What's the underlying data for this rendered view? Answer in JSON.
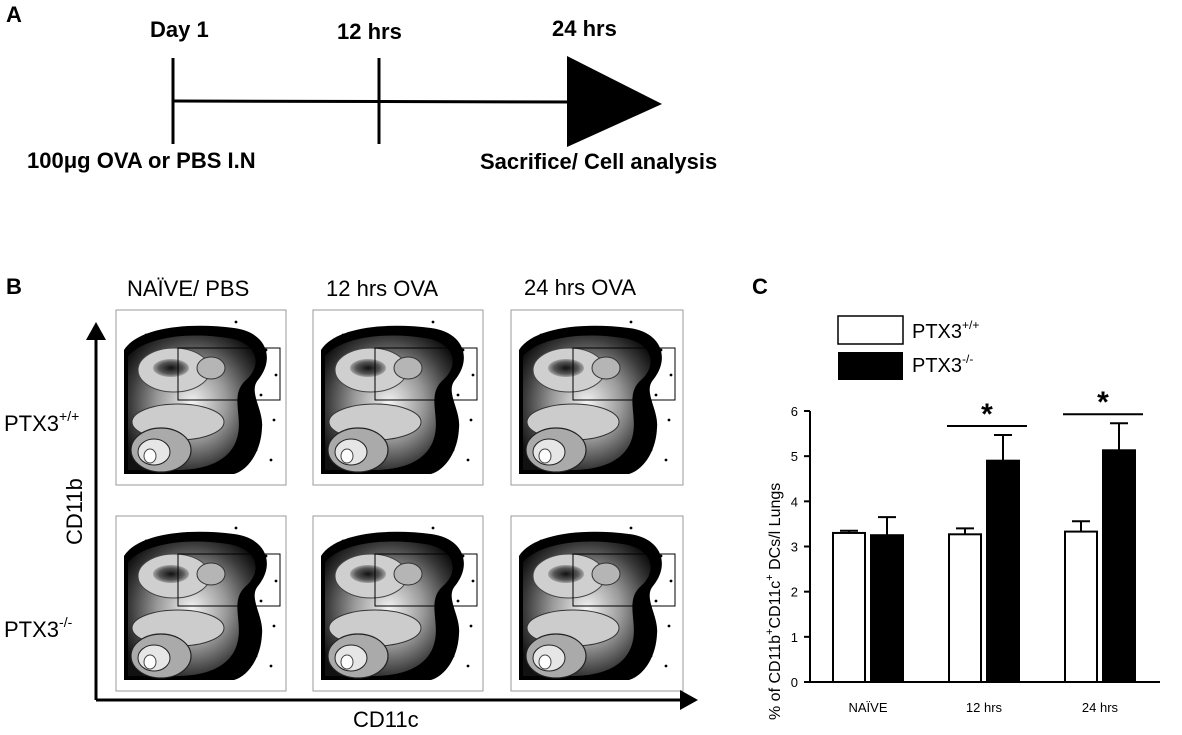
{
  "panels": {
    "a_label": "A",
    "b_label": "B",
    "c_label": "C"
  },
  "timeline": {
    "day1": "Day 1",
    "mid": "12 hrs",
    "end": "24 hrs",
    "treatment": "100μg OVA or PBS I.N",
    "outcome": "Sacrifice/ Cell analysis"
  },
  "flow": {
    "columns": [
      "NAÏVE/ PBS",
      "12 hrs OVA",
      "24 hrs OVA"
    ],
    "row1": {
      "base": "PTX3",
      "sup": "+/+"
    },
    "row2": {
      "base": "PTX3",
      "sup": "-/-"
    },
    "y_axis": "CD11b",
    "x_axis": "CD11c"
  },
  "colors": {
    "wt_fill": "#ffffff",
    "ko_fill": "#000000",
    "stroke": "#000000"
  },
  "chart_data": {
    "type": "bar",
    "categories": [
      "NAÏVE",
      "12 hrs",
      "24 hrs"
    ],
    "series": [
      {
        "name": "PTX3+/+",
        "values": [
          3.3,
          3.27,
          3.33
        ],
        "errors": [
          0.05,
          0.13,
          0.23
        ],
        "fill": "#ffffff"
      },
      {
        "name": "PTX3-/-",
        "values": [
          3.25,
          4.9,
          5.13
        ],
        "errors": [
          0.4,
          0.57,
          0.6
        ],
        "fill": "#000000"
      }
    ],
    "legend": [
      {
        "base": "PTX3",
        "sup": "+/+"
      },
      {
        "base": "PTX3",
        "sup": "-/-"
      }
    ],
    "legend_position": "top",
    "ylabel": {
      "p1": "% of CD11b",
      "s1": "+",
      "p2": "CD11c",
      "s2": "+",
      "p3": " DCs/l Lungs"
    },
    "ylim": [
      0,
      6
    ],
    "yticks": [
      "0",
      "1",
      "2",
      "3",
      "4",
      "5",
      "6"
    ],
    "significance": [
      {
        "category": "12 hrs",
        "label": "*"
      },
      {
        "category": "24 hrs",
        "label": "*"
      }
    ],
    "grid": false
  }
}
